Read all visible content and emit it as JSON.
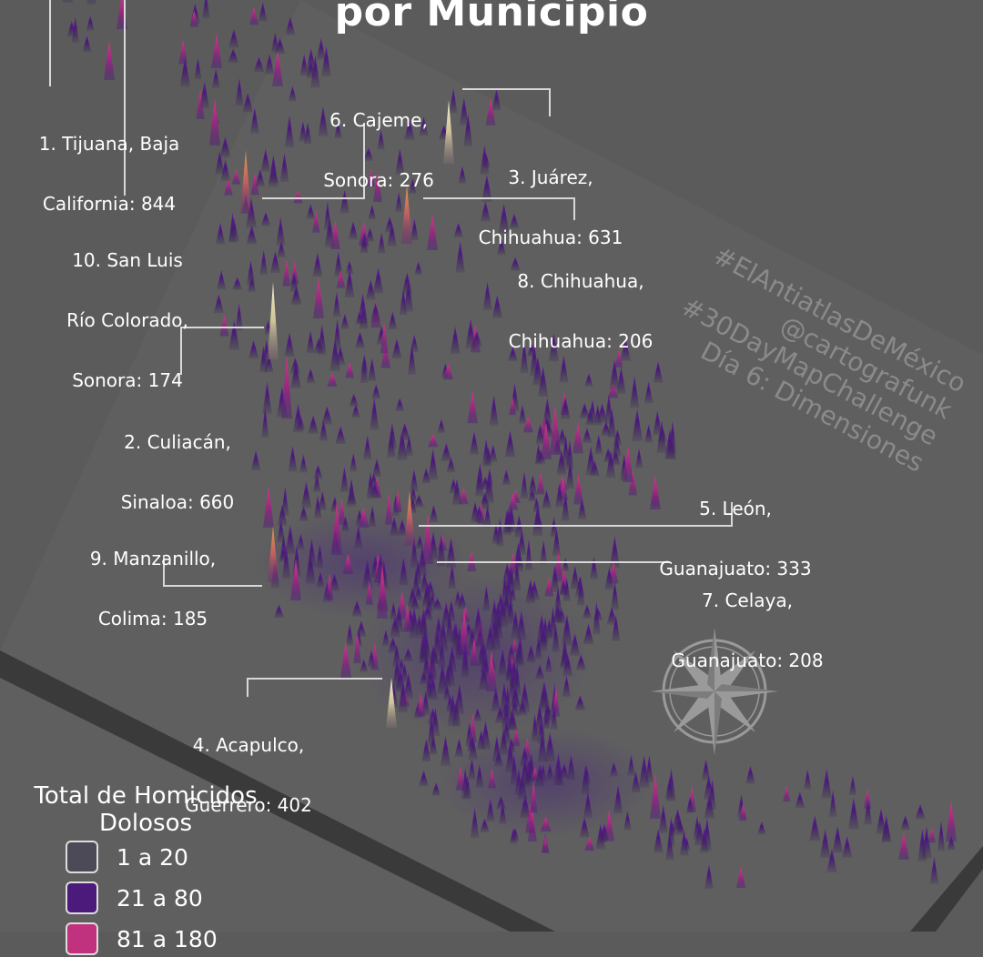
{
  "title": "por Municipio",
  "colors": {
    "background": "#5b5b5b",
    "plane": "#5f5f5f",
    "range_1_20": "#4c4a57",
    "range_21_80": "#4b1a7a",
    "range_81_180": "#c0317e",
    "high_orange": "#d9874a",
    "top_cream": "#efe8c6"
  },
  "labels": [
    {
      "line1": "1. Tijuana, Baja",
      "line2": "California: 844"
    },
    {
      "line1": "2. Culiacán,",
      "line2": "Sinaloa: 660"
    },
    {
      "line1": "3. Juárez,",
      "line2": "Chihuahua: 631"
    },
    {
      "line1": "4. Acapulco,",
      "line2": "Guerrero: 402"
    },
    {
      "line1": "5. León,",
      "line2": "Guanajuato: 333"
    },
    {
      "line1": "6. Cajeme,",
      "line2": "Sonora: 276"
    },
    {
      "line1": "7. Celaya,",
      "line2": "Guanajuato: 208"
    },
    {
      "line1": "8. Chihuahua,",
      "line2": "Chihuahua: 206"
    },
    {
      "line1": "9. Manzanillo,",
      "line2": "Colima: 185"
    },
    {
      "line1": "10. San Luis",
      "line2": "Río Colorado,",
      "line3": "Sonora: 174"
    }
  ],
  "watermark": {
    "line1": "#ElAntiatlasDeMéxico",
    "line2": "@cartografunk",
    "line3": "#30DayMapChallenge",
    "line4": "Día 6: Dimensiones"
  },
  "legend": {
    "title_line1": "Total de Homicidos",
    "title_line2": "Dolosos",
    "items": [
      {
        "label": "1 a 20",
        "color": "#4c4a57"
      },
      {
        "label": "21 a 80",
        "color": "#4b1a7a"
      },
      {
        "label": "81 a 180",
        "color": "#c0317e"
      }
    ]
  },
  "compass_icon": "compass-rose-icon"
}
